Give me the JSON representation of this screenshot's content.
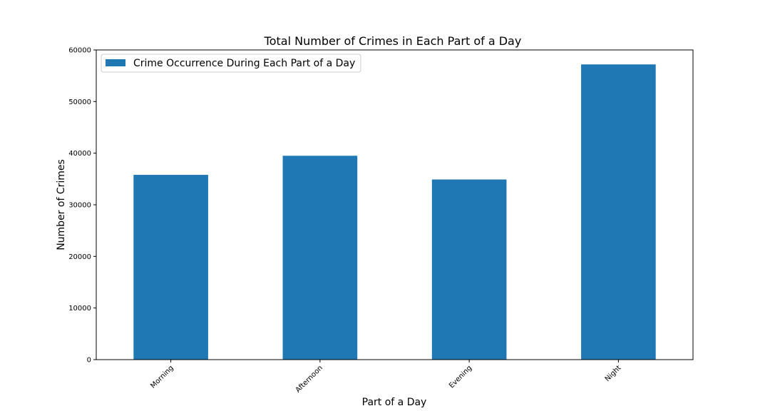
{
  "chart_data": {
    "type": "bar",
    "title": "Total Number of Crimes in Each Part of a Day",
    "xlabel": "Part of a Day",
    "ylabel": "Number of Crimes",
    "categories": [
      "Morning",
      "Afternoon",
      "Evening",
      "Night"
    ],
    "series": [
      {
        "name": "Crime Occurrence During Each Part of a Day",
        "values": [
          35800,
          39500,
          34900,
          57200
        ],
        "color": "#1f77b4"
      }
    ],
    "ylim": [
      0,
      60000
    ],
    "yticks": [
      "0",
      "10000",
      "20000",
      "30000",
      "40000",
      "50000",
      "60000"
    ],
    "grid": false,
    "legend_position": "top-left"
  }
}
